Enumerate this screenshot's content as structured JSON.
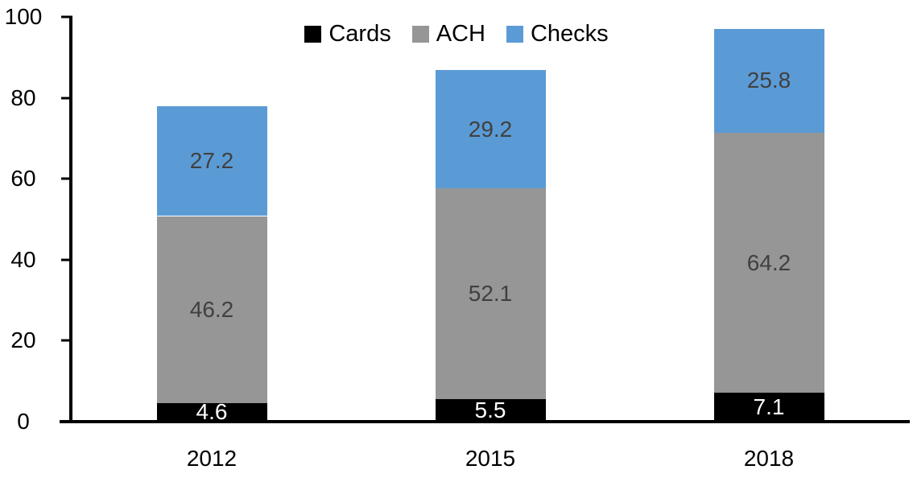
{
  "chart_data": {
    "type": "bar",
    "stacked": true,
    "title": "",
    "categories": [
      "2012",
      "2015",
      "2018"
    ],
    "series": [
      {
        "name": "Cards",
        "color": "#000000",
        "label_color": "#ffffff",
        "values": [
          4.6,
          5.5,
          7.1
        ]
      },
      {
        "name": "ACH",
        "color": "#969696",
        "label_color": "#404040",
        "values": [
          46.2,
          52.1,
          64.2
        ]
      },
      {
        "name": "Checks",
        "color": "#5b9bd5",
        "label_color": "#404040",
        "values": [
          27.2,
          29.2,
          25.8
        ]
      }
    ],
    "y_ticks": [
      0,
      20,
      40,
      60,
      80,
      100
    ],
    "ylim": [
      0,
      100
    ],
    "xlabel": "",
    "ylabel": "",
    "legend_position": "top-center",
    "grid": false,
    "axis_color": "#000000",
    "background_color": "#ffffff"
  }
}
